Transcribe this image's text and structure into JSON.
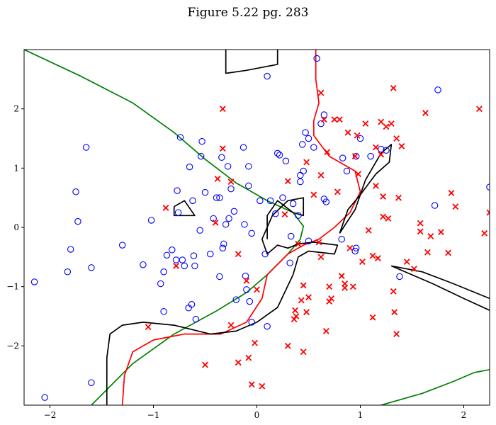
{
  "chart_data": {
    "type": "scatter",
    "title": "Figure 5.22 pg. 283",
    "xlabel": "",
    "ylabel": "",
    "xlim": [
      -2.25,
      2.25
    ],
    "ylim": [
      -3.0,
      3.0
    ],
    "x_ticks": [
      -2,
      -1,
      0,
      1,
      2
    ],
    "x_tick_labels": [
      "−2",
      "−1",
      "0",
      "1",
      "2"
    ],
    "y_ticks": [
      -2,
      -1,
      0,
      1,
      2
    ],
    "y_tick_labels": [
      "−2",
      "−1",
      "0",
      "1",
      "2"
    ],
    "grid": false,
    "legend": "none",
    "series": [
      {
        "marker": "circle-open",
        "color": "#0000ff",
        "points": [
          [
            -2.15,
            -0.92
          ],
          [
            -2.05,
            -2.87
          ],
          [
            -1.83,
            -0.75
          ],
          [
            -1.8,
            -0.37
          ],
          [
            -1.75,
            0.6
          ],
          [
            -1.73,
            0.1
          ],
          [
            -1.65,
            1.35
          ],
          [
            -1.6,
            -0.68
          ],
          [
            -1.6,
            -2.62
          ],
          [
            -1.3,
            -0.3
          ],
          [
            -1.1,
            -0.63
          ],
          [
            -1.02,
            0.12
          ],
          [
            -0.93,
            -0.95
          ],
          [
            -0.9,
            -0.75
          ],
          [
            -0.9,
            -1.42
          ],
          [
            -0.87,
            -0.47
          ],
          [
            -0.82,
            -0.38
          ],
          [
            -0.78,
            -0.55
          ],
          [
            -0.77,
            0.62
          ],
          [
            -0.76,
            0.25
          ],
          [
            -0.74,
            1.52
          ],
          [
            -0.72,
            -0.55
          ],
          [
            -0.7,
            -0.65
          ],
          [
            -0.66,
            -1.36
          ],
          [
            -0.65,
            1.02
          ],
          [
            -0.63,
            -1.3
          ],
          [
            -0.62,
            0.45
          ],
          [
            -0.61,
            -0.48
          ],
          [
            -0.6,
            -0.65
          ],
          [
            -0.59,
            -1.55
          ],
          [
            -0.55,
            -0.05
          ],
          [
            -0.54,
            1.2
          ],
          [
            -0.53,
            1.45
          ],
          [
            -0.5,
            0.59
          ],
          [
            -0.45,
            -0.45
          ],
          [
            -0.42,
            0.15
          ],
          [
            -0.39,
            0.5
          ],
          [
            -0.36,
            0.5
          ],
          [
            -0.36,
            -0.83
          ],
          [
            -0.34,
            1.18
          ],
          [
            -0.33,
            -0.35
          ],
          [
            -0.32,
            -0.28
          ],
          [
            -0.3,
            0.05
          ],
          [
            -0.28,
            1.03
          ],
          [
            -0.27,
            0.15
          ],
          [
            -0.25,
            0.65
          ],
          [
            -0.22,
            0.27
          ],
          [
            -0.2,
            -1.22
          ],
          [
            -0.13,
            1.35
          ],
          [
            -0.12,
            0.05
          ],
          [
            -0.11,
            -0.82
          ],
          [
            -0.1,
            -1.05
          ],
          [
            -0.08,
            0.7
          ],
          [
            -0.08,
            1.03
          ],
          [
            -0.07,
            -1.25
          ],
          [
            -0.05,
            -0.1
          ],
          [
            -0.05,
            -1.6
          ],
          [
            0.03,
            0.45
          ],
          [
            0.08,
            -0.45
          ],
          [
            0.1,
            2.55
          ],
          [
            0.1,
            -1.67
          ],
          [
            0.13,
            0.45
          ],
          [
            0.18,
            0.23
          ],
          [
            0.2,
            1.25
          ],
          [
            0.22,
            1.22
          ],
          [
            0.25,
            0.5
          ],
          [
            0.28,
            1.12
          ],
          [
            0.32,
            -0.6
          ],
          [
            0.33,
            -0.15
          ],
          [
            0.35,
            0.4
          ],
          [
            0.4,
            0.2
          ],
          [
            0.42,
            0.88
          ],
          [
            0.42,
            0.77
          ],
          [
            0.44,
            1.4
          ],
          [
            0.45,
            0.95
          ],
          [
            0.47,
            1.6
          ],
          [
            0.5,
            -0.23
          ],
          [
            0.5,
            1.5
          ],
          [
            0.55,
            1.35
          ],
          [
            0.58,
            2.85
          ],
          [
            0.62,
            1.75
          ],
          [
            0.65,
            1.9
          ],
          [
            0.65,
            0.48
          ],
          [
            0.67,
            0.43
          ],
          [
            0.82,
            -0.2
          ],
          [
            0.83,
            1.17
          ],
          [
            0.87,
            0.95
          ],
          [
            0.95,
            -0.4
          ],
          [
            0.96,
            1.2
          ],
          [
            0.96,
            -0.35
          ],
          [
            1.0,
            1.5
          ],
          [
            1.1,
            1.2
          ],
          [
            1.2,
            1.32
          ],
          [
            1.25,
            1.3
          ],
          [
            1.38,
            -0.83
          ],
          [
            1.72,
            0.37
          ],
          [
            1.75,
            2.32
          ],
          [
            2.25,
            0.68
          ]
        ]
      },
      {
        "marker": "x",
        "color": "#ff0000",
        "points": [
          [
            -1.05,
            -1.68
          ],
          [
            -0.88,
            0.33
          ],
          [
            -0.78,
            -0.65
          ],
          [
            -0.5,
            -2.32
          ],
          [
            -0.4,
            0.08
          ],
          [
            -0.38,
            0.82
          ],
          [
            -0.33,
            2.0
          ],
          [
            -0.33,
            1.33
          ],
          [
            -0.25,
            -1.65
          ],
          [
            -0.25,
            0.77
          ],
          [
            -0.18,
            -2.28
          ],
          [
            -0.18,
            -0.45
          ],
          [
            -0.1,
            -0.9
          ],
          [
            -0.08,
            -2.2
          ],
          [
            -0.05,
            -2.65
          ],
          [
            -0.02,
            -1.95
          ],
          [
            0.0,
            -1.05
          ],
          [
            0.05,
            -2.68
          ],
          [
            0.27,
            0.22
          ],
          [
            0.3,
            -2.0
          ],
          [
            0.3,
            0.78
          ],
          [
            0.36,
            -1.55
          ],
          [
            0.37,
            -1.4
          ],
          [
            0.38,
            -1.5
          ],
          [
            0.4,
            -0.28
          ],
          [
            0.43,
            -1.23
          ],
          [
            0.45,
            -2.1
          ],
          [
            0.45,
            -0.98
          ],
          [
            0.48,
            -1.43
          ],
          [
            0.48,
            1.1
          ],
          [
            0.5,
            -1.18
          ],
          [
            0.55,
            0.55
          ],
          [
            0.6,
            -0.25
          ],
          [
            0.62,
            2.27
          ],
          [
            0.62,
            0.88
          ],
          [
            0.62,
            -0.5
          ],
          [
            0.65,
            1.82
          ],
          [
            0.67,
            -1.75
          ],
          [
            0.68,
            1.27
          ],
          [
            0.7,
            -1.0
          ],
          [
            0.7,
            -1.25
          ],
          [
            0.72,
            -1.2
          ],
          [
            0.75,
            1.82
          ],
          [
            0.78,
            0.6
          ],
          [
            0.8,
            1.82
          ],
          [
            0.82,
            -0.82
          ],
          [
            0.85,
            -0.95
          ],
          [
            0.85,
            -1.02
          ],
          [
            0.88,
            1.6
          ],
          [
            0.9,
            -0.35
          ],
          [
            0.93,
            -1.0
          ],
          [
            0.95,
            1.2
          ],
          [
            0.97,
            1.55
          ],
          [
            0.98,
            0.9
          ],
          [
            1.02,
            -0.58
          ],
          [
            1.05,
            1.75
          ],
          [
            1.08,
            -0.05
          ],
          [
            1.12,
            -0.48
          ],
          [
            1.12,
            -1.52
          ],
          [
            1.15,
            1.35
          ],
          [
            1.15,
            0.7
          ],
          [
            1.17,
            -0.52
          ],
          [
            1.2,
            1.78
          ],
          [
            1.2,
            1.23
          ],
          [
            1.22,
            0.52
          ],
          [
            1.22,
            0.18
          ],
          [
            1.25,
            1.7
          ],
          [
            1.27,
            0.15
          ],
          [
            1.3,
            1.75
          ],
          [
            1.32,
            2.35
          ],
          [
            1.32,
            -1.08
          ],
          [
            1.33,
            -1.43
          ],
          [
            1.35,
            -1.8
          ],
          [
            1.35,
            1.5
          ],
          [
            1.37,
            0.5
          ],
          [
            1.4,
            1.37
          ],
          [
            1.45,
            -0.58
          ],
          [
            1.52,
            -0.7
          ],
          [
            1.58,
            -0.07
          ],
          [
            1.58,
            0.07
          ],
          [
            1.63,
            1.93
          ],
          [
            1.65,
            -0.42
          ],
          [
            1.68,
            -0.15
          ],
          [
            1.78,
            -0.08
          ],
          [
            1.85,
            -0.43
          ],
          [
            1.88,
            0.58
          ],
          [
            1.92,
            0.35
          ],
          [
            2.15,
            2.0
          ],
          [
            2.2,
            -0.1
          ],
          [
            2.25,
            0.25
          ]
        ]
      }
    ],
    "curves": [
      {
        "color": "#008000",
        "segments": [
          [
            [
              -2.25,
              3.0
            ],
            [
              -1.7,
              2.55
            ],
            [
              -1.2,
              2.1
            ],
            [
              -0.8,
              1.6
            ],
            [
              -0.5,
              1.15
            ],
            [
              -0.2,
              0.75
            ],
            [
              0.1,
              0.45
            ],
            [
              0.35,
              0.25
            ],
            [
              0.45,
              0.02
            ],
            [
              0.42,
              -0.2
            ],
            [
              0.3,
              -0.45
            ],
            [
              0.1,
              -0.8
            ],
            [
              -0.1,
              -1.1
            ],
            [
              -0.4,
              -1.42
            ],
            [
              -0.8,
              -1.8
            ],
            [
              -1.2,
              -2.3
            ],
            [
              -1.6,
              -3.0
            ]
          ],
          [
            [
              1.2,
              -3.0
            ],
            [
              1.6,
              -2.8
            ],
            [
              1.9,
              -2.6
            ],
            [
              2.1,
              -2.45
            ],
            [
              2.25,
              -2.4
            ]
          ]
        ]
      },
      {
        "color": "#ff0000",
        "segments": [
          [
            [
              -1.3,
              -3.0
            ],
            [
              -1.28,
              -2.5
            ],
            [
              -1.2,
              -2.1
            ],
            [
              -1.0,
              -1.9
            ],
            [
              -0.7,
              -1.8
            ],
            [
              -0.35,
              -1.8
            ],
            [
              -0.1,
              -1.6
            ],
            [
              0.05,
              -1.2
            ],
            [
              0.1,
              -0.8
            ],
            [
              0.3,
              -0.45
            ],
            [
              0.45,
              -0.3
            ],
            [
              0.6,
              -0.2
            ],
            [
              0.75,
              0.0
            ],
            [
              0.9,
              0.25
            ],
            [
              1.0,
              0.6
            ],
            [
              0.95,
              0.95
            ],
            [
              0.7,
              1.2
            ],
            [
              0.55,
              1.55
            ],
            [
              0.55,
              1.8
            ],
            [
              0.6,
              2.1
            ],
            [
              0.57,
              2.5
            ],
            [
              0.57,
              3.0
            ]
          ]
        ]
      },
      {
        "color": "#000000",
        "segments": [
          [
            [
              -1.45,
              -3.0
            ],
            [
              -1.45,
              -2.2
            ],
            [
              -1.42,
              -1.8
            ],
            [
              -1.3,
              -1.65
            ],
            [
              -1.1,
              -1.6
            ],
            [
              -0.8,
              -1.65
            ],
            [
              -0.45,
              -1.8
            ],
            [
              -0.2,
              -1.75
            ],
            [
              0.0,
              -1.6
            ],
            [
              0.2,
              -1.35
            ],
            [
              0.35,
              -0.8
            ],
            [
              0.4,
              -0.5
            ],
            [
              0.5,
              -0.4
            ],
            [
              0.75,
              -0.45
            ],
            [
              0.78,
              -0.3
            ],
            [
              0.55,
              -0.25
            ],
            [
              0.4,
              -0.28
            ],
            [
              0.3,
              -0.35
            ],
            [
              0.2,
              -0.3
            ],
            [
              0.1,
              -0.45
            ],
            [
              0.05,
              -0.2
            ],
            [
              0.15,
              0.2
            ],
            [
              0.3,
              0.45
            ],
            [
              0.45,
              0.5
            ],
            [
              0.45,
              0.2
            ],
            [
              0.35,
              0.25
            ],
            [
              0.2,
              0.45
            ],
            [
              0.1,
              0.2
            ],
            [
              0.1,
              -0.2
            ]
          ],
          [
            [
              -0.3,
              3.0
            ],
            [
              -0.3,
              2.6
            ],
            [
              -0.1,
              2.65
            ],
            [
              0.2,
              2.75
            ],
            [
              0.2,
              3.0
            ]
          ],
          [
            [
              -0.8,
              0.35
            ],
            [
              -0.7,
              0.45
            ],
            [
              -0.6,
              0.2
            ],
            [
              -0.8,
              0.2
            ],
            [
              -0.8,
              0.35
            ]
          ],
          [
            [
              0.8,
              -0.1
            ],
            [
              0.95,
              0.3
            ],
            [
              1.05,
              0.8
            ],
            [
              1.2,
              1.25
            ],
            [
              1.3,
              1.4
            ],
            [
              1.28,
              1.1
            ],
            [
              1.15,
              0.9
            ],
            [
              1.0,
              0.55
            ],
            [
              0.88,
              0.3
            ],
            [
              0.8,
              -0.1
            ]
          ],
          [
            [
              1.3,
              -0.65
            ],
            [
              1.6,
              -0.75
            ],
            [
              1.9,
              -0.95
            ],
            [
              2.25,
              -1.2
            ]
          ],
          [
            [
              1.3,
              -0.65
            ],
            [
              1.7,
              -0.95
            ],
            [
              2.0,
              -1.2
            ],
            [
              2.25,
              -1.4
            ]
          ]
        ]
      }
    ]
  }
}
